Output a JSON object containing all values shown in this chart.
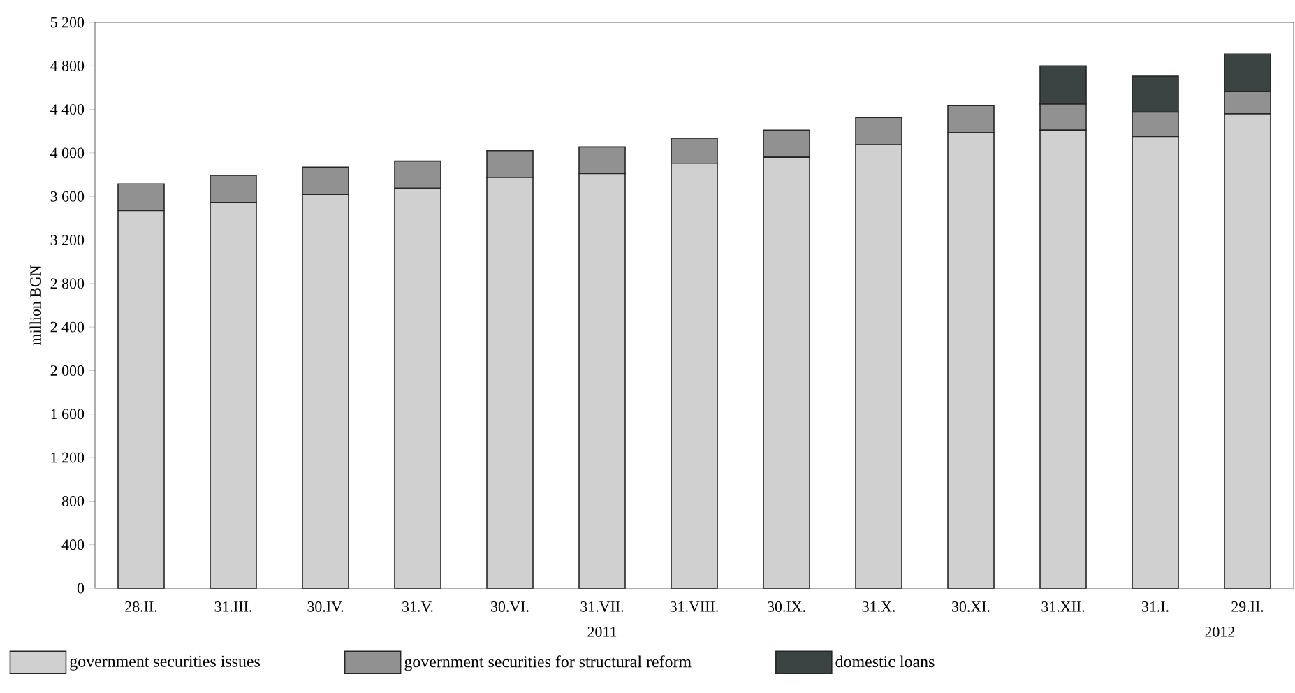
{
  "chart_data": {
    "type": "bar",
    "stacked": true,
    "ylabel": "million BGN",
    "categories": [
      "28.II.",
      "31.III.",
      "30.IV.",
      "31.V.",
      "30.VI.",
      "31.VII.",
      "31.VIII.",
      "30.IX.",
      "31.X.",
      "30.XI.",
      "31.XII.",
      "31.I.",
      "29.II."
    ],
    "series": [
      {
        "name": "government securities issues",
        "color": "#d0d0d0",
        "values": [
          3470,
          3545,
          3620,
          3675,
          3775,
          3810,
          3905,
          3960,
          4075,
          4185,
          4210,
          4150,
          4360
        ]
      },
      {
        "name": "government securities for structural reform",
        "color": "#919191",
        "values": [
          245,
          250,
          250,
          250,
          245,
          245,
          230,
          250,
          250,
          250,
          240,
          225,
          205
        ]
      },
      {
        "name": "domestic loans",
        "color": "#3c4443",
        "values": [
          null,
          null,
          null,
          null,
          null,
          null,
          null,
          null,
          null,
          null,
          350,
          330,
          345
        ]
      }
    ],
    "ylim": [
      0,
      5200
    ],
    "yticks": [
      0,
      400,
      800,
      {
        "value": 1200,
        "label": "1 200"
      },
      {
        "value": 1600,
        "label": "1 600"
      },
      {
        "value": 2000,
        "label": "2 000"
      },
      {
        "value": 2400,
        "label": "2 400"
      },
      {
        "value": 2800,
        "label": "2 800"
      },
      {
        "value": 3200,
        "label": "3 200"
      },
      {
        "value": 3600,
        "label": "3 600"
      },
      {
        "value": 4000,
        "label": "4 000"
      },
      {
        "value": 4400,
        "label": "4 400"
      },
      {
        "value": 4800,
        "label": "4 800"
      },
      {
        "value": 5200,
        "label": "5 200"
      }
    ],
    "annotations": [
      "2011",
      "2012"
    ],
    "legend": "bottom",
    "grid": false
  }
}
